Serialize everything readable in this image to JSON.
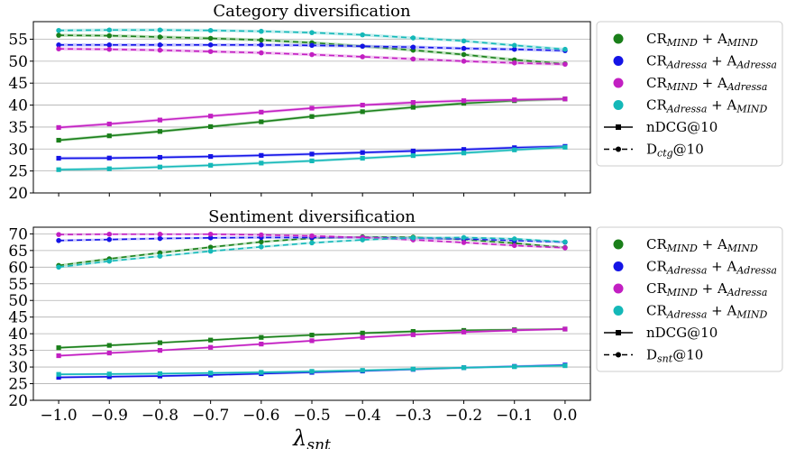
{
  "chart_data": [
    {
      "type": "line",
      "title": "Category diversification",
      "xlabel": "",
      "ylabel": "",
      "x": [
        -1.0,
        -0.9,
        -0.8,
        -0.7,
        -0.6,
        -0.5,
        -0.4,
        -0.3,
        -0.2,
        -0.1,
        0.0
      ],
      "xlim": [
        -1.05,
        0.05
      ],
      "ylim": [
        20,
        59
      ],
      "yticks": [
        20,
        25,
        30,
        35,
        40,
        45,
        50,
        55
      ],
      "grid": "y",
      "legend_position": "right",
      "legend": [
        {
          "color": "green",
          "base": "CR",
          "sub1": "MIND",
          "plus": " + A",
          "sub2": "MIND"
        },
        {
          "color": "blue",
          "base": "CR",
          "sub1": "Adressa",
          "plus": " + A",
          "sub2": "Adressa"
        },
        {
          "color": "magenta",
          "base": "CR",
          "sub1": "MIND",
          "plus": " + A",
          "sub2": "Adressa"
        },
        {
          "color": "cyan",
          "base": "CR",
          "sub1": "Adressa",
          "plus": " + A",
          "sub2": "MIND"
        }
      ],
      "legend_styles": [
        {
          "style": "solid",
          "marker": "square",
          "base": "nDCG@10",
          "sub": ""
        },
        {
          "style": "dashed",
          "marker": "circle",
          "base": "D",
          "sub": "ctg",
          "suffix": "@10"
        }
      ],
      "series": [
        {
          "name": "CR_MIND + A_MIND nDCG@10",
          "color": "green",
          "style": "solid",
          "values": [
            32.0,
            33.0,
            34.0,
            35.1,
            36.2,
            37.4,
            38.5,
            39.5,
            40.4,
            41.0,
            41.4
          ]
        },
        {
          "name": "CR_Adressa + A_Adressa nDCG@10",
          "color": "blue",
          "style": "solid",
          "values": [
            27.9,
            27.95,
            28.1,
            28.3,
            28.55,
            28.85,
            29.2,
            29.55,
            29.9,
            30.3,
            30.6
          ]
        },
        {
          "name": "CR_MIND + A_Adressa nDCG@10",
          "color": "magenta",
          "style": "solid",
          "values": [
            34.9,
            35.7,
            36.6,
            37.5,
            38.4,
            39.3,
            40.0,
            40.6,
            41.0,
            41.2,
            41.4
          ]
        },
        {
          "name": "CR_Adressa + A_MIND nDCG@10",
          "color": "cyan",
          "style": "solid",
          "values": [
            25.3,
            25.5,
            25.9,
            26.3,
            26.8,
            27.3,
            27.9,
            28.5,
            29.1,
            29.8,
            30.4
          ]
        },
        {
          "name": "CR_MIND + A_MIND D_ctg@10",
          "color": "green",
          "style": "dashed",
          "values": [
            55.9,
            55.8,
            55.5,
            55.2,
            54.8,
            54.2,
            53.4,
            52.5,
            51.5,
            50.3,
            49.4
          ]
        },
        {
          "name": "CR_Adressa + A_Adressa D_ctg@10",
          "color": "blue",
          "style": "dashed",
          "values": [
            53.7,
            53.7,
            53.7,
            53.7,
            53.7,
            53.6,
            53.4,
            53.2,
            52.9,
            52.7,
            52.4
          ]
        },
        {
          "name": "CR_MIND + A_Adressa D_ctg@10",
          "color": "magenta",
          "style": "dashed",
          "values": [
            52.8,
            52.7,
            52.5,
            52.2,
            51.9,
            51.5,
            51.0,
            50.5,
            50.0,
            49.6,
            49.3
          ]
        },
        {
          "name": "CR_Adressa + A_MIND D_ctg@10",
          "color": "cyan",
          "style": "dashed",
          "values": [
            57.0,
            57.1,
            57.1,
            57.0,
            56.8,
            56.5,
            56.0,
            55.3,
            54.6,
            53.6,
            52.7
          ]
        }
      ]
    },
    {
      "type": "line",
      "title": "Sentiment diversification",
      "xlabel": "λ_snt",
      "ylabel": "",
      "x": [
        -1.0,
        -0.9,
        -0.8,
        -0.7,
        -0.6,
        -0.5,
        -0.4,
        -0.3,
        -0.2,
        -0.1,
        0.0
      ],
      "xlim": [
        -1.05,
        0.05
      ],
      "ylim": [
        20,
        72
      ],
      "yticks": [
        20,
        25,
        30,
        35,
        40,
        45,
        50,
        55,
        60,
        65,
        70
      ],
      "xticks": [
        "−1.0",
        "−0.9",
        "−0.8",
        "−0.7",
        "−0.6",
        "−0.5",
        "−0.4",
        "−0.3",
        "−0.2",
        "−0.1",
        "0.0"
      ],
      "grid": "y",
      "legend_position": "right",
      "legend": [
        {
          "color": "green",
          "base": "CR",
          "sub1": "MIND",
          "plus": " + A",
          "sub2": "MIND"
        },
        {
          "color": "blue",
          "base": "CR",
          "sub1": "Adressa",
          "plus": " + A",
          "sub2": "Adressa"
        },
        {
          "color": "magenta",
          "base": "CR",
          "sub1": "MIND",
          "plus": " + A",
          "sub2": "Adressa"
        },
        {
          "color": "cyan",
          "base": "CR",
          "sub1": "Adressa",
          "plus": " + A",
          "sub2": "MIND"
        }
      ],
      "legend_styles": [
        {
          "style": "solid",
          "marker": "square",
          "base": "nDCG@10",
          "sub": ""
        },
        {
          "style": "dashed",
          "marker": "circle",
          "base": "D",
          "sub": "snt",
          "suffix": "@10"
        }
      ],
      "series": [
        {
          "name": "CR_MIND + A_MIND nDCG@10",
          "color": "green",
          "style": "solid",
          "values": [
            35.8,
            36.5,
            37.3,
            38.1,
            38.9,
            39.6,
            40.2,
            40.7,
            41.0,
            41.2,
            41.4
          ]
        },
        {
          "name": "CR_Adressa + A_Adressa nDCG@10",
          "color": "blue",
          "style": "solid",
          "values": [
            26.9,
            27.1,
            27.3,
            27.6,
            28.0,
            28.4,
            28.8,
            29.3,
            29.8,
            30.2,
            30.6
          ]
        },
        {
          "name": "CR_MIND + A_Adressa nDCG@10",
          "color": "magenta",
          "style": "solid",
          "values": [
            33.4,
            34.2,
            35.0,
            35.9,
            36.9,
            37.9,
            38.9,
            39.7,
            40.5,
            41.0,
            41.4
          ]
        },
        {
          "name": "CR_Adressa + A_MIND nDCG@10",
          "color": "cyan",
          "style": "solid",
          "values": [
            27.8,
            27.9,
            28.0,
            28.2,
            28.4,
            28.7,
            29.0,
            29.4,
            29.8,
            30.1,
            30.4
          ]
        },
        {
          "name": "CR_MIND + A_MIND D_snt@10",
          "color": "green",
          "style": "dashed",
          "values": [
            60.5,
            62.5,
            64.3,
            66.0,
            67.6,
            68.7,
            69.1,
            69.0,
            68.3,
            67.2,
            65.9
          ]
        },
        {
          "name": "CR_Adressa + A_Adressa D_snt@10",
          "color": "blue",
          "style": "dashed",
          "values": [
            68.0,
            68.3,
            68.6,
            68.8,
            68.9,
            68.9,
            68.9,
            68.7,
            68.5,
            68.0,
            67.5
          ]
        },
        {
          "name": "CR_MIND + A_Adressa D_snt@10",
          "color": "magenta",
          "style": "dashed",
          "values": [
            69.8,
            69.9,
            69.9,
            69.9,
            69.7,
            69.4,
            68.9,
            68.2,
            67.4,
            66.5,
            65.8
          ]
        },
        {
          "name": "CR_Adressa + A_MIND D_snt@10",
          "color": "cyan",
          "style": "dashed",
          "values": [
            60.0,
            61.8,
            63.3,
            64.8,
            66.1,
            67.3,
            68.2,
            68.8,
            68.9,
            68.5,
            67.6
          ]
        }
      ]
    }
  ]
}
